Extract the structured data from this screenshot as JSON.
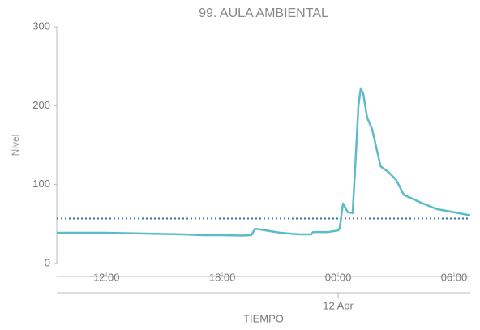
{
  "chart_data": {
    "type": "line",
    "title": "99. AULA AMBIENTAL",
    "ylabel": "Nivel",
    "xlabel": "TIEMPO",
    "date_label": "12 Apr",
    "date_at": 24,
    "xlim": [
      9.43,
      30.84
    ],
    "ylim": [
      0,
      300
    ],
    "yticks": [
      0,
      100,
      200,
      300
    ],
    "xticks": [
      {
        "value": 12,
        "label": "12:00"
      },
      {
        "value": 18,
        "label": "18:00"
      },
      {
        "value": 24,
        "label": "00:00"
      },
      {
        "value": 30,
        "label": "06:00"
      }
    ],
    "threshold": 57,
    "threshold_color": "#3a6fa8",
    "series": [
      {
        "color": "#5bbcc8",
        "x": [
          9.43,
          10,
          11,
          12,
          13,
          14,
          15,
          16,
          17,
          18,
          19,
          19.5,
          19.7,
          20,
          21,
          22,
          22.6,
          22.7,
          23,
          23.5,
          24,
          24.08,
          24.25,
          24.5,
          24.75,
          24.9,
          25.05,
          25.17,
          25.3,
          25.5,
          25.76,
          26.2,
          26.6,
          27.0,
          27.4,
          28.3,
          29.1,
          30,
          30.84
        ],
        "values": [
          39,
          39,
          39,
          39,
          38.5,
          38,
          37.5,
          37,
          36,
          36,
          35.5,
          36,
          44,
          43,
          39,
          37,
          37,
          40,
          40,
          40,
          42,
          45,
          76,
          65,
          64,
          130,
          200,
          222,
          215,
          185,
          170,
          123,
          116,
          106,
          87,
          77,
          69,
          65,
          61
        ]
      }
    ]
  }
}
